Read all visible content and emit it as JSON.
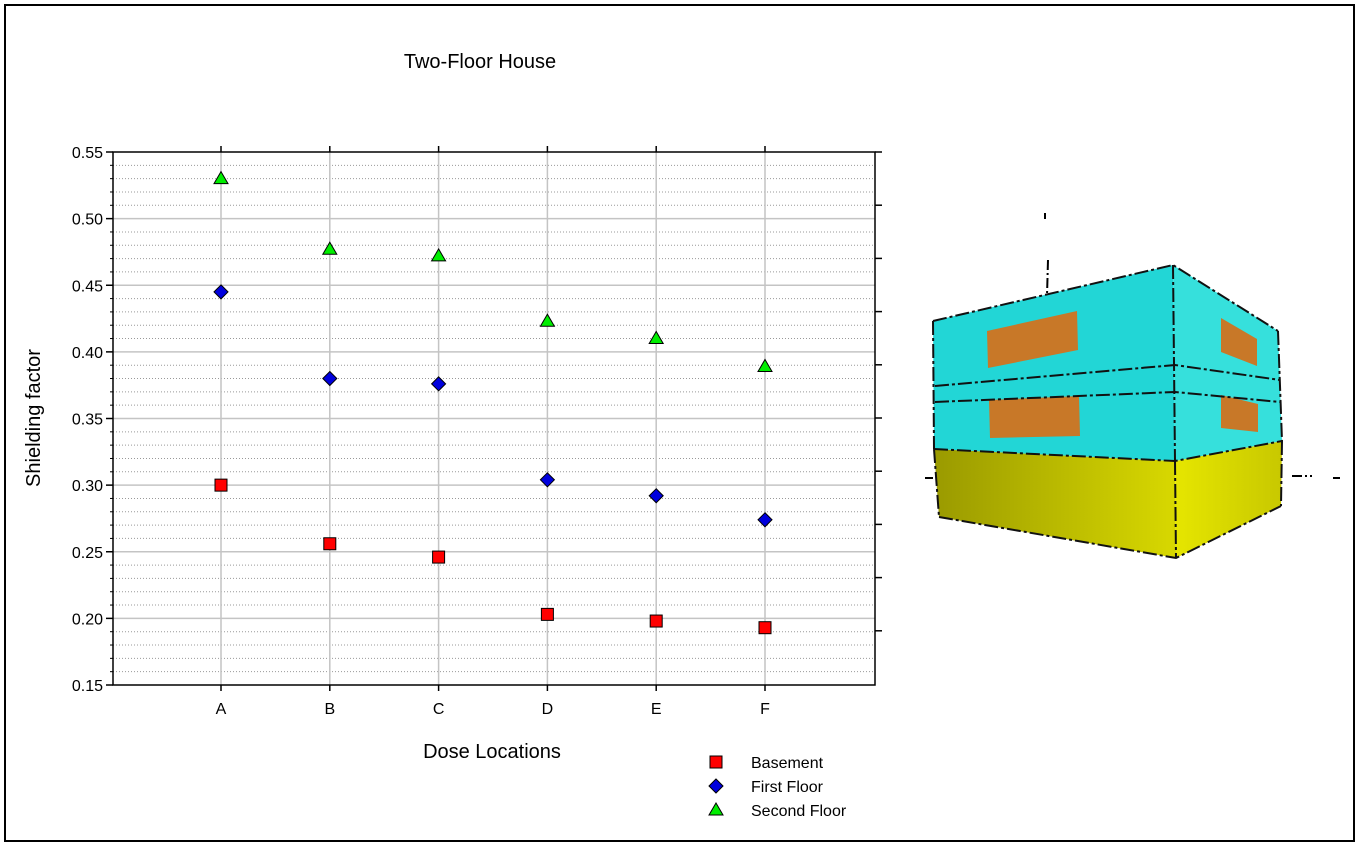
{
  "chart_data": {
    "type": "scatter",
    "title": "Two-Floor House",
    "xlabel": "Dose Locations",
    "ylabel": "Shielding factor",
    "categories": [
      "A",
      "B",
      "C",
      "D",
      "E",
      "F"
    ],
    "ylim": [
      0.15,
      0.55
    ],
    "yticks": [
      "0.15",
      "0.20",
      "0.25",
      "0.30",
      "0.35",
      "0.40",
      "0.45",
      "0.50",
      "0.55"
    ],
    "grid": true,
    "legend_position": "bottom-right",
    "series": [
      {
        "name": "Basement",
        "marker": "square",
        "color": "#ff0000",
        "values": [
          0.3,
          0.256,
          0.246,
          0.203,
          0.198,
          0.193
        ]
      },
      {
        "name": "First Floor",
        "marker": "diamond",
        "color": "#0000dd",
        "values": [
          0.445,
          0.38,
          0.376,
          0.304,
          0.292,
          0.274
        ]
      },
      {
        "name": "Second Floor",
        "marker": "triangle",
        "color": "#00ee00",
        "values": [
          0.53,
          0.477,
          0.472,
          0.423,
          0.41,
          0.389
        ]
      }
    ]
  },
  "illustration": {
    "name": "two-floor house model",
    "colors": {
      "upper_walls": "#22d6d6",
      "basement": "#d4d400",
      "windows": "#c87828"
    }
  }
}
